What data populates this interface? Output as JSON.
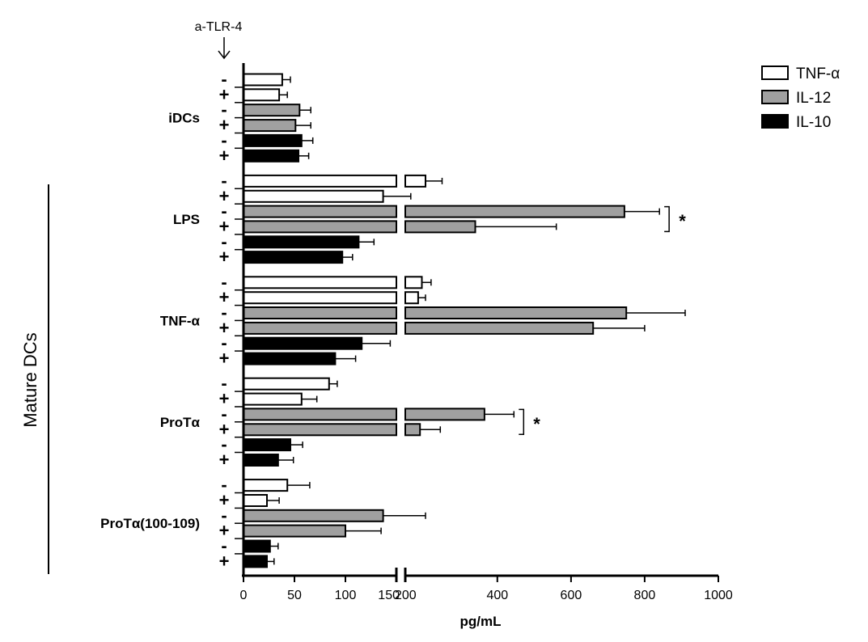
{
  "chart_data": {
    "type": "bar",
    "orientation": "horizontal",
    "x_axis_label": "pg/mL",
    "y_axis_group_label": "Mature DCs",
    "treatment_label": "a-TLR-4",
    "x_axis": {
      "broken": true,
      "segment1": {
        "range": [
          0,
          150
        ],
        "ticks": [
          "0",
          "50",
          "100",
          "150"
        ]
      },
      "segment2": {
        "range": [
          150,
          1000
        ],
        "ticks": [
          "200",
          "400",
          "600",
          "800",
          "1000"
        ]
      }
    },
    "series": [
      {
        "name": "TNF-α",
        "color": "#ffffff"
      },
      {
        "name": "IL-12",
        "color": "#a0a0a0"
      },
      {
        "name": "IL-10",
        "color": "#000000"
      }
    ],
    "legend_position": "top-right",
    "groups": [
      {
        "name": "iDCs",
        "bars": [
          {
            "series": "TNF-α",
            "sign": "-",
            "value": 38,
            "error": 8
          },
          {
            "series": "TNF-α",
            "sign": "+",
            "value": 35,
            "error": 8
          },
          {
            "series": "IL-12",
            "sign": "-",
            "value": 55,
            "error": 11
          },
          {
            "series": "IL-12",
            "sign": "+",
            "value": 51,
            "error": 15
          },
          {
            "series": "IL-10",
            "sign": "-",
            "value": 57,
            "error": 11
          },
          {
            "series": "IL-10",
            "sign": "+",
            "value": 54,
            "error": 10
          }
        ]
      },
      {
        "name": "LPS",
        "bars": [
          {
            "series": "TNF-α",
            "sign": "-",
            "value": 205,
            "error": 45
          },
          {
            "series": "TNF-α",
            "sign": "+",
            "value": 137,
            "error": 28
          },
          {
            "series": "IL-12",
            "sign": "-",
            "value": 745,
            "error": 95
          },
          {
            "series": "IL-12",
            "sign": "+",
            "value": 340,
            "error": 220
          },
          {
            "series": "IL-10",
            "sign": "-",
            "value": 113,
            "error": 15
          },
          {
            "series": "IL-10",
            "sign": "+",
            "value": 97,
            "error": 10
          }
        ],
        "significance": {
          "between": "IL-12",
          "label": "*"
        }
      },
      {
        "name": "TNF-α",
        "bars": [
          {
            "series": "TNF-α",
            "sign": "-",
            "value": 195,
            "error": 25
          },
          {
            "series": "TNF-α",
            "sign": "+",
            "value": 185,
            "error": 20
          },
          {
            "series": "IL-12",
            "sign": "-",
            "value": 750,
            "error": 160
          },
          {
            "series": "IL-12",
            "sign": "+",
            "value": 660,
            "error": 140
          },
          {
            "series": "IL-10",
            "sign": "-",
            "value": 116,
            "error": 28
          },
          {
            "series": "IL-10",
            "sign": "+",
            "value": 90,
            "error": 20
          }
        ]
      },
      {
        "name": "ProTα",
        "bars": [
          {
            "series": "TNF-α",
            "sign": "-",
            "value": 84,
            "error": 8
          },
          {
            "series": "TNF-α",
            "sign": "+",
            "value": 57,
            "error": 15
          },
          {
            "series": "IL-12",
            "sign": "-",
            "value": 365,
            "error": 80
          },
          {
            "series": "IL-12",
            "sign": "+",
            "value": 190,
            "error": 55
          },
          {
            "series": "IL-10",
            "sign": "-",
            "value": 46,
            "error": 12
          },
          {
            "series": "IL-10",
            "sign": "+",
            "value": 34,
            "error": 15
          }
        ],
        "significance": {
          "between": "IL-12",
          "label": "*"
        }
      },
      {
        "name": "ProTα(100-109)",
        "bars": [
          {
            "series": "TNF-α",
            "sign": "-",
            "value": 43,
            "error": 22
          },
          {
            "series": "TNF-α",
            "sign": "+",
            "value": 23,
            "error": 12
          },
          {
            "series": "IL-12",
            "sign": "-",
            "value": 137,
            "error": 68
          },
          {
            "series": "IL-12",
            "sign": "+",
            "value": 100,
            "error": 35
          },
          {
            "series": "IL-10",
            "sign": "-",
            "value": 26,
            "error": 8
          },
          {
            "series": "IL-10",
            "sign": "+",
            "value": 23,
            "error": 7
          }
        ]
      }
    ]
  }
}
